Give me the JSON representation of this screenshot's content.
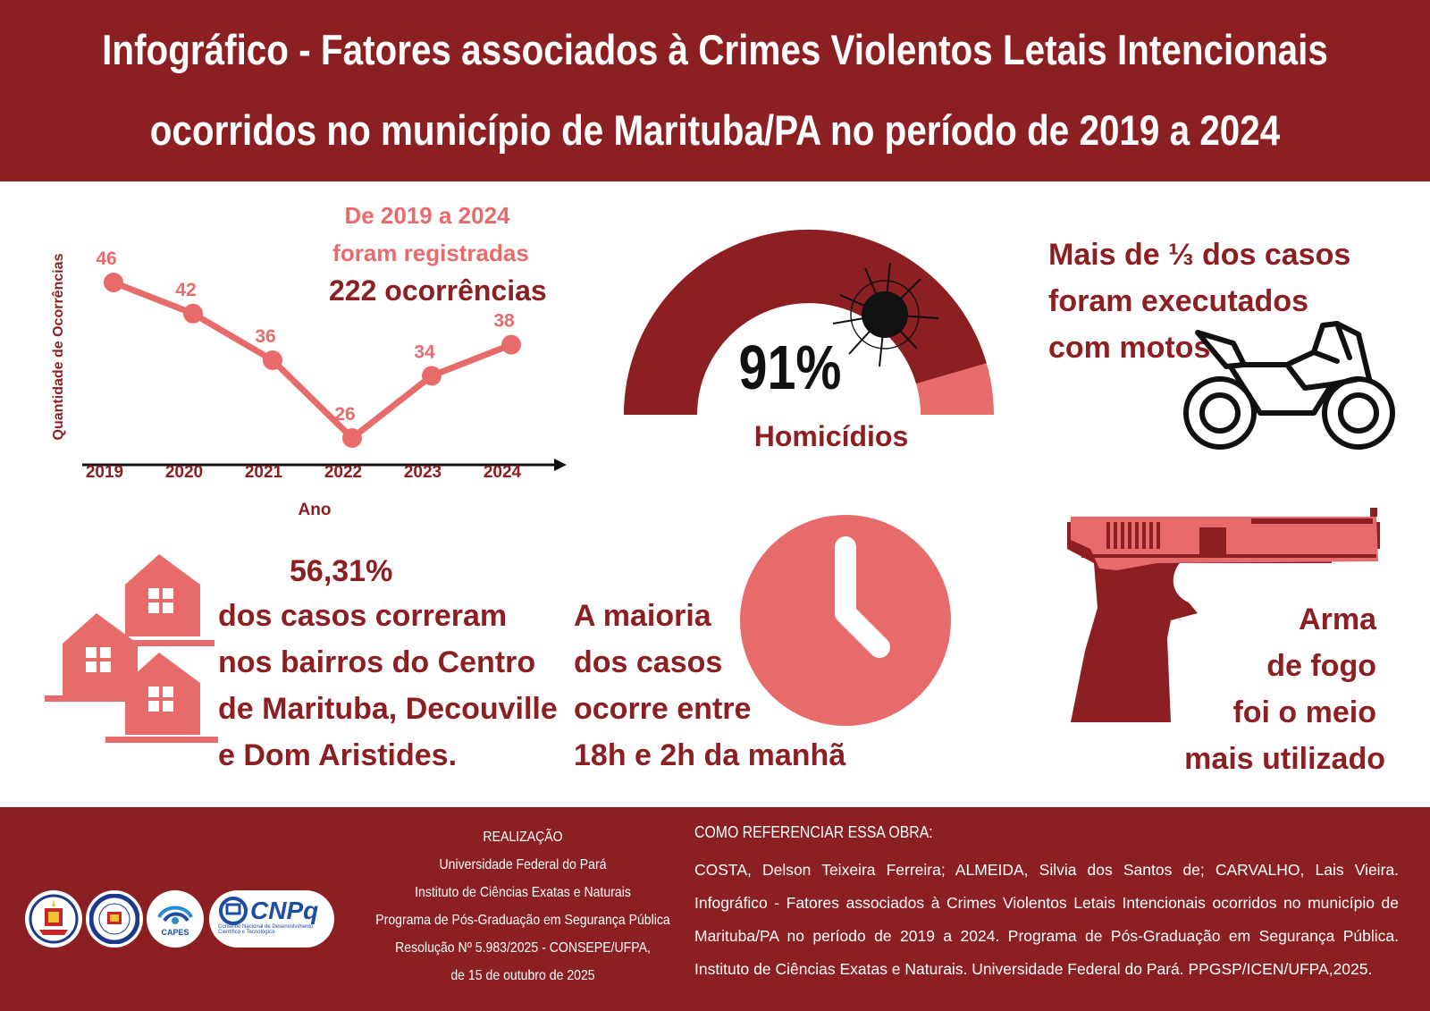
{
  "header": {
    "title_line1": "Infográfico - Fatores associados à Crimes Violentos Letais Intencionais",
    "title_line2": "ocorridos no município de Marituba/PA no período de 2019 a 2024"
  },
  "colors": {
    "dark_red": "#8b1f22",
    "pink": "#e86b6c",
    "white": "#ffffff",
    "black": "#111111"
  },
  "chart_data": {
    "type": "line",
    "categories": [
      "2019",
      "2020",
      "2021",
      "2022",
      "2023",
      "2024"
    ],
    "values": [
      46,
      42,
      36,
      26,
      34,
      38
    ],
    "ylabel": "Quantidade de Ocorrências",
    "xlabel": "Ano",
    "ylim": [
      22,
      50
    ]
  },
  "total": {
    "line1": "De 2019 a 2024",
    "line2": "foram registradas",
    "line3": "222 ocorrências"
  },
  "homicide": {
    "percent_label": "91%",
    "fraction": 0.91,
    "label": "Homicídios"
  },
  "moto": {
    "lines": [
      "Mais de ⅓ dos casos",
      "foram executados",
      "com motos"
    ],
    "icon": "motorcycle-icon"
  },
  "neighborhoods": {
    "percent": "56,31%",
    "lines": [
      "dos casos correram",
      "nos bairros do Centro",
      "de Marituba, Decouville",
      "e Dom Aristides."
    ],
    "icon": "houses-icon"
  },
  "time": {
    "lines": [
      "A maioria",
      "dos casos",
      "ocorre entre",
      "18h e 2h da manhã"
    ],
    "icon": "clock-icon"
  },
  "weapon": {
    "lines": [
      "Arma",
      "de fogo",
      "foi o meio",
      "mais utilizado"
    ],
    "icon": "pistol-icon"
  },
  "footer": {
    "realization": {
      "title": "REALIZAÇÃO",
      "lines": [
        "Universidade Federal do Pará",
        "Instituto de Ciências Exatas e Naturais",
        "Programa de Pós-Graduação em Segurança Pública",
        "Resolução Nº 5.983/2025 - CONSEPE/UFPA,",
        "de 15 de outubro de 2025"
      ]
    },
    "reference": {
      "title": "COMO REFERENCIAR ESSA OBRA:",
      "text": "COSTA, Delson Teixeira Ferreira; ALMEIDA, Silvia dos Santos de; CARVALHO, Lais Vieira. Infográfico - Fatores associados à Crimes Violentos Letais Intencionais ocorridos no município de Marituba/PA no período de 2019 a 2024. Programa de Pós-Graduação em Segurança Pública. Instituto de Ciências Exatas e Naturais. Universidade Federal do Pará. PPGSP/ICEN/UFPA,2025."
    },
    "logos": {
      "capes": "CAPES",
      "cnpq": "CNPq",
      "cnpq_sub1": "Conselho Nacional de Desenvolvimento",
      "cnpq_sub2": "Científico e Tecnológico"
    }
  }
}
